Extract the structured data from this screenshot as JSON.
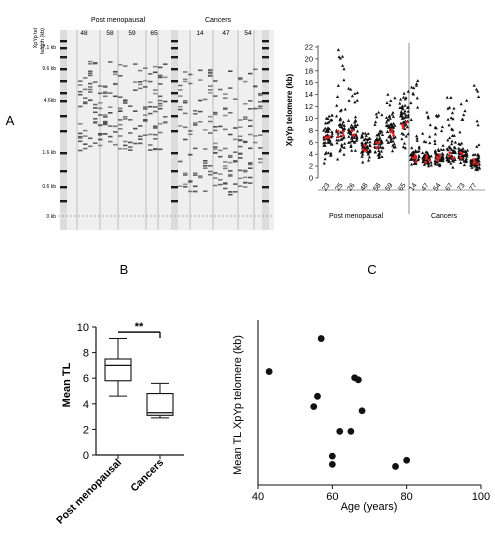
{
  "panels": {
    "A": "A",
    "B": "B",
    "C": "C"
  },
  "gel": {
    "side_label": [
      "XpYp tel",
      "length (kb)"
    ],
    "group_post": "Post menopausal",
    "group_cancer": "Cancers",
    "lane_labels_post": [
      "48",
      "58",
      "59",
      "65"
    ],
    "lane_labels_cancer": [
      "14",
      "47",
      "54"
    ],
    "size_markers": [
      "17.1 kb",
      "9.6 kb",
      "4.6kb",
      "1.6 kb",
      "0.6 kb",
      "0 kb"
    ],
    "colors": {
      "background": "#efefef",
      "band": "#4a4a4a",
      "ladder": "#1a1a1a",
      "separator": "#9a9a9a"
    }
  },
  "chart_data": [
    {
      "panel": "A",
      "type": "scatter",
      "ylabel": "XpYp telomere (kb)",
      "ylim": [
        0,
        22
      ],
      "yticks": [
        0,
        2,
        4,
        6,
        8,
        10,
        12,
        14,
        16,
        18,
        20,
        22
      ],
      "groups": [
        "Post menopausal",
        "Cancers"
      ],
      "categories": [
        "23",
        "25",
        "26",
        "48",
        "58",
        "59",
        "65",
        "14",
        "47",
        "54",
        "67",
        "73",
        "77"
      ],
      "group_of_category": [
        0,
        0,
        0,
        0,
        0,
        0,
        0,
        1,
        1,
        1,
        1,
        1,
        1
      ],
      "medians": [
        6.8,
        7.5,
        7.4,
        5.0,
        5.5,
        7.6,
        8.9,
        3.2,
        3.2,
        3.4,
        3.8,
        3.7,
        2.7
      ],
      "maxima": [
        10.5,
        21.5,
        15.0,
        7.5,
        11.0,
        14.0,
        14.5,
        16.3,
        11.0,
        10.5,
        13.5,
        13.0,
        15.5
      ],
      "marker_color": "#111111",
      "median_color": "#e02020",
      "grid": false
    },
    {
      "panel": "B",
      "type": "box",
      "ylabel": "Mean TL",
      "ylim": [
        0,
        10
      ],
      "yticks": [
        0,
        2,
        4,
        6,
        8,
        10
      ],
      "categories": [
        "Post menopausal",
        "Cancers"
      ],
      "boxes": [
        {
          "min": 4.6,
          "q1": 5.8,
          "median": 7.0,
          "q3": 7.5,
          "max": 9.1
        },
        {
          "min": 2.9,
          "q1": 3.1,
          "median": 3.3,
          "q3": 4.8,
          "max": 5.6
        }
      ],
      "significance": "**"
    },
    {
      "panel": "C",
      "type": "scatter",
      "xlabel": "Age (years)",
      "ylabel": "Mean TL XpYp telomere (kb)",
      "xlim": [
        40,
        100
      ],
      "ylim": [
        2,
        10
      ],
      "xticks": [
        40,
        60,
        80,
        100
      ],
      "points": [
        {
          "x": 43,
          "y": 7.5
        },
        {
          "x": 55,
          "y": 5.8
        },
        {
          "x": 56,
          "y": 6.3
        },
        {
          "x": 57,
          "y": 9.1
        },
        {
          "x": 60,
          "y": 3.4
        },
        {
          "x": 60,
          "y": 3.0
        },
        {
          "x": 62,
          "y": 4.6
        },
        {
          "x": 65,
          "y": 4.6
        },
        {
          "x": 66,
          "y": 7.2
        },
        {
          "x": 67,
          "y": 7.1
        },
        {
          "x": 68,
          "y": 5.6
        },
        {
          "x": 77,
          "y": 2.9
        },
        {
          "x": 80,
          "y": 3.2
        }
      ]
    }
  ]
}
